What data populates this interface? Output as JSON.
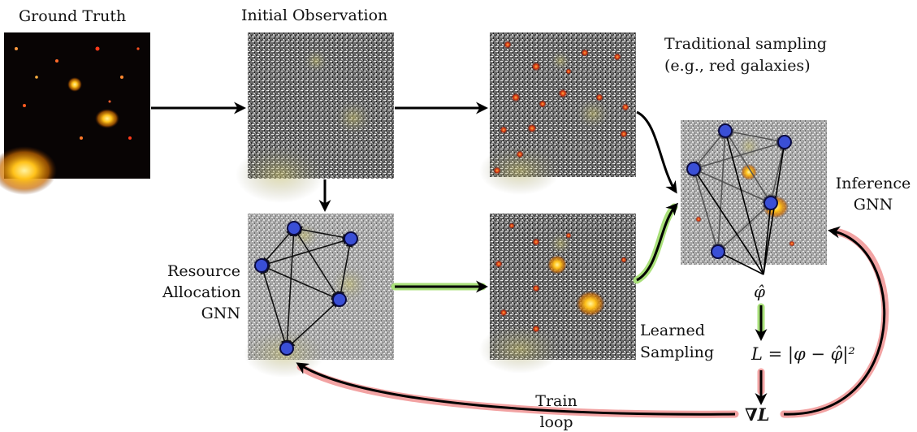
{
  "labels": {
    "ground_truth": "Ground Truth",
    "initial_observation": "Initial Observation",
    "traditional_sampling_line1": "Traditional sampling",
    "traditional_sampling_line2": "(e.g., red galaxies)",
    "inference_gnn_line1": "Inference",
    "inference_gnn_line2": "GNN",
    "resource_allocation_line1": "Resource",
    "resource_allocation_line2": "Allocation",
    "resource_allocation_line3": "GNN",
    "learned_sampling_line1": "Learned",
    "learned_sampling_line2": "Sampling",
    "train_loop_line1": "Train",
    "train_loop_line2": "loop"
  },
  "math": {
    "phi_hat": "φ̂",
    "loss": "L = |φ − φ̂|²",
    "grad_loss": "∇L"
  },
  "colors": {
    "arrow": "#000000",
    "learned_highlight": "#a9e07a",
    "train_loop_highlight": "#f2a3a3",
    "node_fill": "#3a4fd6",
    "node_stroke": "#0b0b40"
  }
}
